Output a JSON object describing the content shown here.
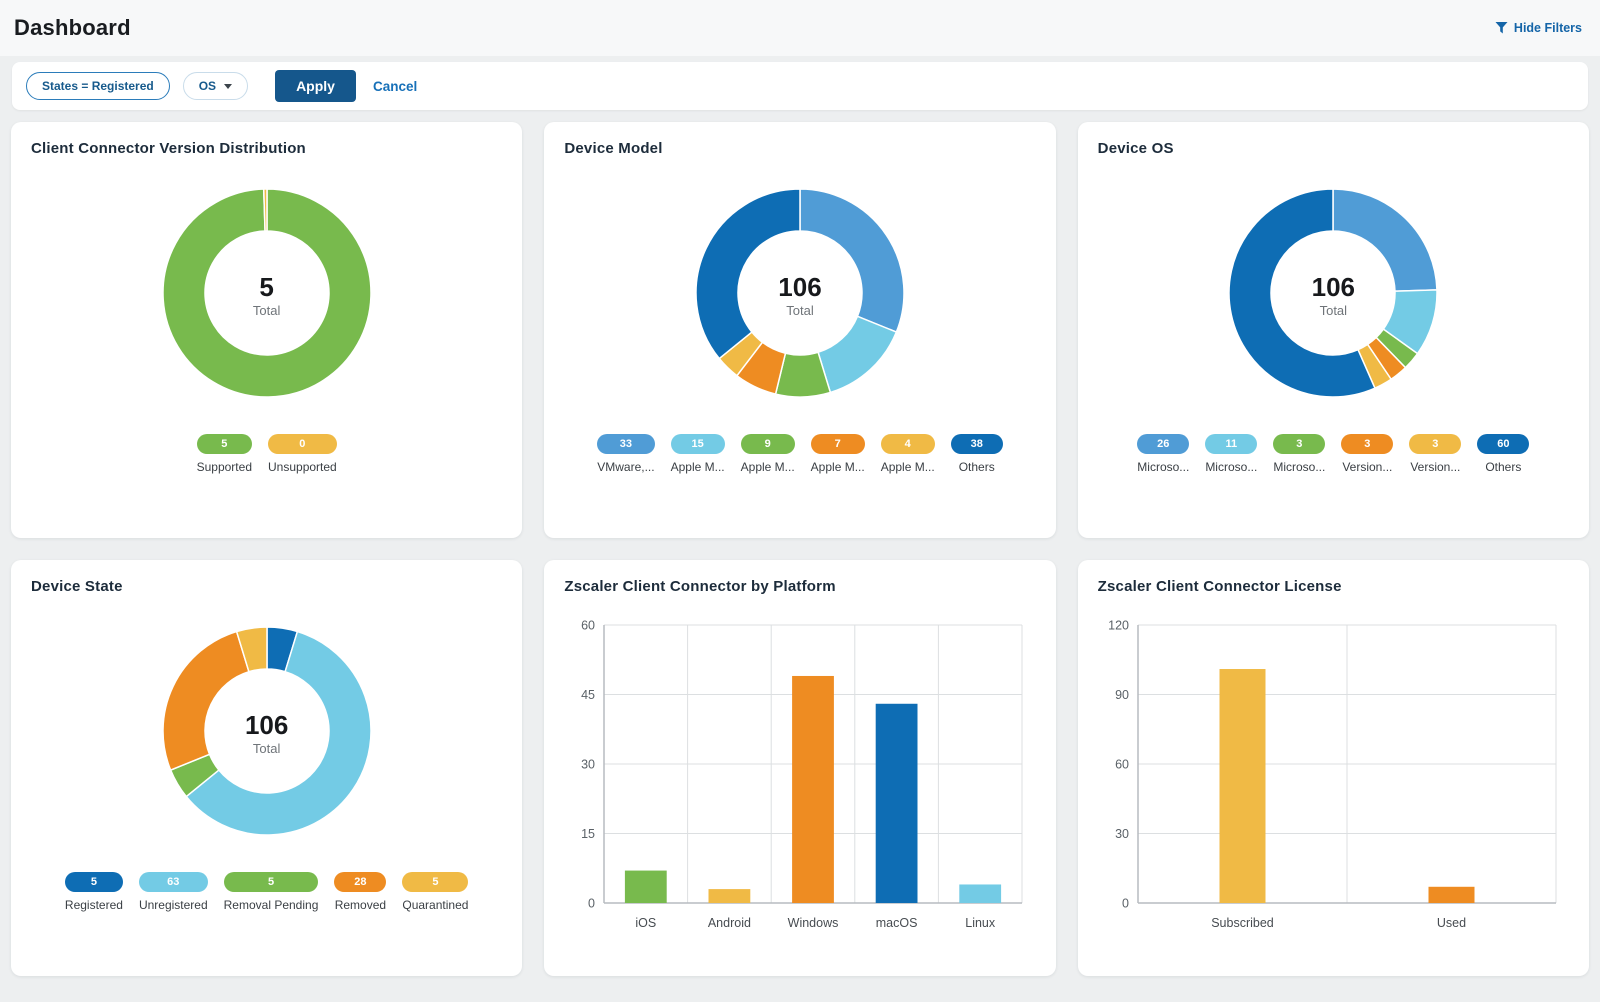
{
  "page": {
    "title": "Dashboard",
    "hide_filters_label": "Hide Filters"
  },
  "filters": {
    "state_filter": "States = Registered",
    "os_filter": "OS",
    "apply_label": "Apply",
    "cancel_label": "Cancel"
  },
  "colors": {
    "dark_blue": "#0e6db4",
    "medium_blue": "#509cd6",
    "light_blue": "#73cbe5",
    "green": "#78ba4d",
    "orange": "#ee8c22",
    "yellow": "#f0ba45",
    "link_blue": "#1565a8",
    "apply_button_bg": "#15578c"
  },
  "chart_data": [
    {
      "type": "pie",
      "title": "Client Connector Version Distribution",
      "total": 5,
      "total_label": "Total",
      "segments": [
        {
          "label": "Supported",
          "value": 5,
          "color": "#78ba4d"
        },
        {
          "label": "Unsupported",
          "value": 0,
          "color": "#f0ba45"
        }
      ]
    },
    {
      "type": "pie",
      "title": "Device Model",
      "total": 106,
      "total_label": "Total",
      "segments": [
        {
          "label": "VMware,...",
          "value": 33,
          "color": "#509cd6"
        },
        {
          "label": "Apple M...",
          "value": 15,
          "color": "#73cbe5"
        },
        {
          "label": "Apple M...",
          "value": 9,
          "color": "#78ba4d"
        },
        {
          "label": "Apple M...",
          "value": 7,
          "color": "#ee8c22"
        },
        {
          "label": "Apple M...",
          "value": 4,
          "color": "#f0ba45"
        },
        {
          "label": "Others",
          "value": 38,
          "color": "#0e6db4"
        }
      ]
    },
    {
      "type": "pie",
      "title": "Device OS",
      "total": 106,
      "total_label": "Total",
      "segments": [
        {
          "label": "Microso...",
          "value": 26,
          "color": "#509cd6"
        },
        {
          "label": "Microso...",
          "value": 11,
          "color": "#73cbe5"
        },
        {
          "label": "Microso...",
          "value": 3,
          "color": "#78ba4d"
        },
        {
          "label": "Version...",
          "value": 3,
          "color": "#ee8c22"
        },
        {
          "label": "Version...",
          "value": 3,
          "color": "#f0ba45"
        },
        {
          "label": "Others",
          "value": 60,
          "color": "#0e6db4"
        }
      ]
    },
    {
      "type": "pie",
      "title": "Device State",
      "total": 106,
      "total_label": "Total",
      "segments": [
        {
          "label": "Registered",
          "value": 5,
          "color": "#0e6db4"
        },
        {
          "label": "Unregistered",
          "value": 63,
          "color": "#73cbe5"
        },
        {
          "label": "Removal Pending",
          "value": 5,
          "color": "#78ba4d"
        },
        {
          "label": "Removed",
          "value": 28,
          "color": "#ee8c22"
        },
        {
          "label": "Quarantined",
          "value": 5,
          "color": "#f0ba45"
        }
      ]
    },
    {
      "type": "bar",
      "title": "Zscaler Client Connector by Platform",
      "categories": [
        "iOS",
        "Android",
        "Windows",
        "macOS",
        "Linux"
      ],
      "values": [
        7,
        3,
        49,
        43,
        4
      ],
      "colors": [
        "#78ba4d",
        "#f0ba45",
        "#ee8c22",
        "#0e6db4",
        "#73cbe5"
      ],
      "xlabel": "",
      "ylabel": "",
      "ylim": [
        0,
        60
      ],
      "yticks": [
        0,
        15,
        30,
        45,
        60
      ],
      "grid": true,
      "legend": false
    },
    {
      "type": "bar",
      "title": "Zscaler Client Connector License",
      "categories": [
        "Subscribed",
        "Used"
      ],
      "values": [
        101,
        7
      ],
      "colors": [
        "#f0ba45",
        "#ee8c22"
      ],
      "xlabel": "",
      "ylabel": "",
      "ylim": [
        0,
        120
      ],
      "yticks": [
        0,
        30,
        60,
        90,
        120
      ],
      "grid": true,
      "legend": false
    }
  ]
}
